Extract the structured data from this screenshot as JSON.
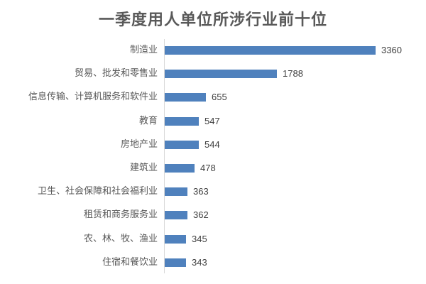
{
  "chart_data": {
    "type": "bar",
    "orientation": "horizontal",
    "title": "一季度用人单位所涉行业前十位",
    "xlabel": "",
    "ylabel": "",
    "grid": false,
    "legend": null,
    "bar_color": "#4f81bd",
    "categories": [
      "制造业",
      "贸易、批发和零售业",
      "信息传输、计算机服务和软件业",
      "教育",
      "房地产业",
      "建筑业",
      "卫生、社会保障和社会福利业",
      "租赁和商务服务业",
      "农、林、牧、渔业",
      "住宿和餐饮业"
    ],
    "values": [
      3360,
      1788,
      655,
      547,
      544,
      478,
      363,
      362,
      345,
      343
    ]
  },
  "rows": [
    {
      "label": "制造业",
      "value": "3360"
    },
    {
      "label": "贸易、批发和零售业",
      "value": "1788"
    },
    {
      "label": "信息传输、计算机服务和软件业",
      "value": "655"
    },
    {
      "label": "教育",
      "value": "547"
    },
    {
      "label": "房地产业",
      "value": "544"
    },
    {
      "label": "建筑业",
      "value": "478"
    },
    {
      "label": "卫生、社会保障和社会福利业",
      "value": "363"
    },
    {
      "label": "租赁和商务服务业",
      "value": "362"
    },
    {
      "label": "农、林、牧、渔业",
      "value": "345"
    },
    {
      "label": "住宿和餐饮业",
      "value": "343"
    }
  ]
}
